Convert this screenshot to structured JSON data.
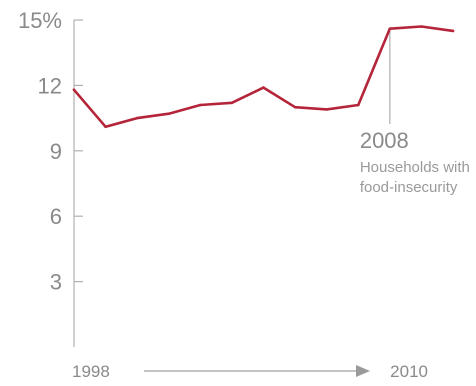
{
  "chart_data": {
    "type": "line",
    "x": [
      1998,
      1999,
      2000,
      2001,
      2002,
      2003,
      2004,
      2005,
      2006,
      2007,
      2008,
      2009,
      2010
    ],
    "series": [
      {
        "values": [
          11.8,
          10.1,
          10.5,
          10.7,
          11.1,
          11.2,
          11.9,
          11.0,
          10.9,
          11.1,
          14.6,
          14.7,
          14.5
        ]
      }
    ],
    "ylim": [
      0,
      15
    ],
    "yticks": [
      {
        "value": 15,
        "label": "15%"
      },
      {
        "value": 12,
        "label": "12"
      },
      {
        "value": 9,
        "label": "9"
      },
      {
        "value": 6,
        "label": "6"
      },
      {
        "value": 3,
        "label": "3"
      }
    ],
    "x_start_label": "1998",
    "x_end_label": "2010",
    "annotation": {
      "x": 2008,
      "year": "2008",
      "lines": [
        "Households with",
        "food-insecurity"
      ]
    },
    "colors": {
      "line": "#b5253a",
      "axis": "#b0b0b0",
      "text": "#8a8a8a"
    }
  }
}
